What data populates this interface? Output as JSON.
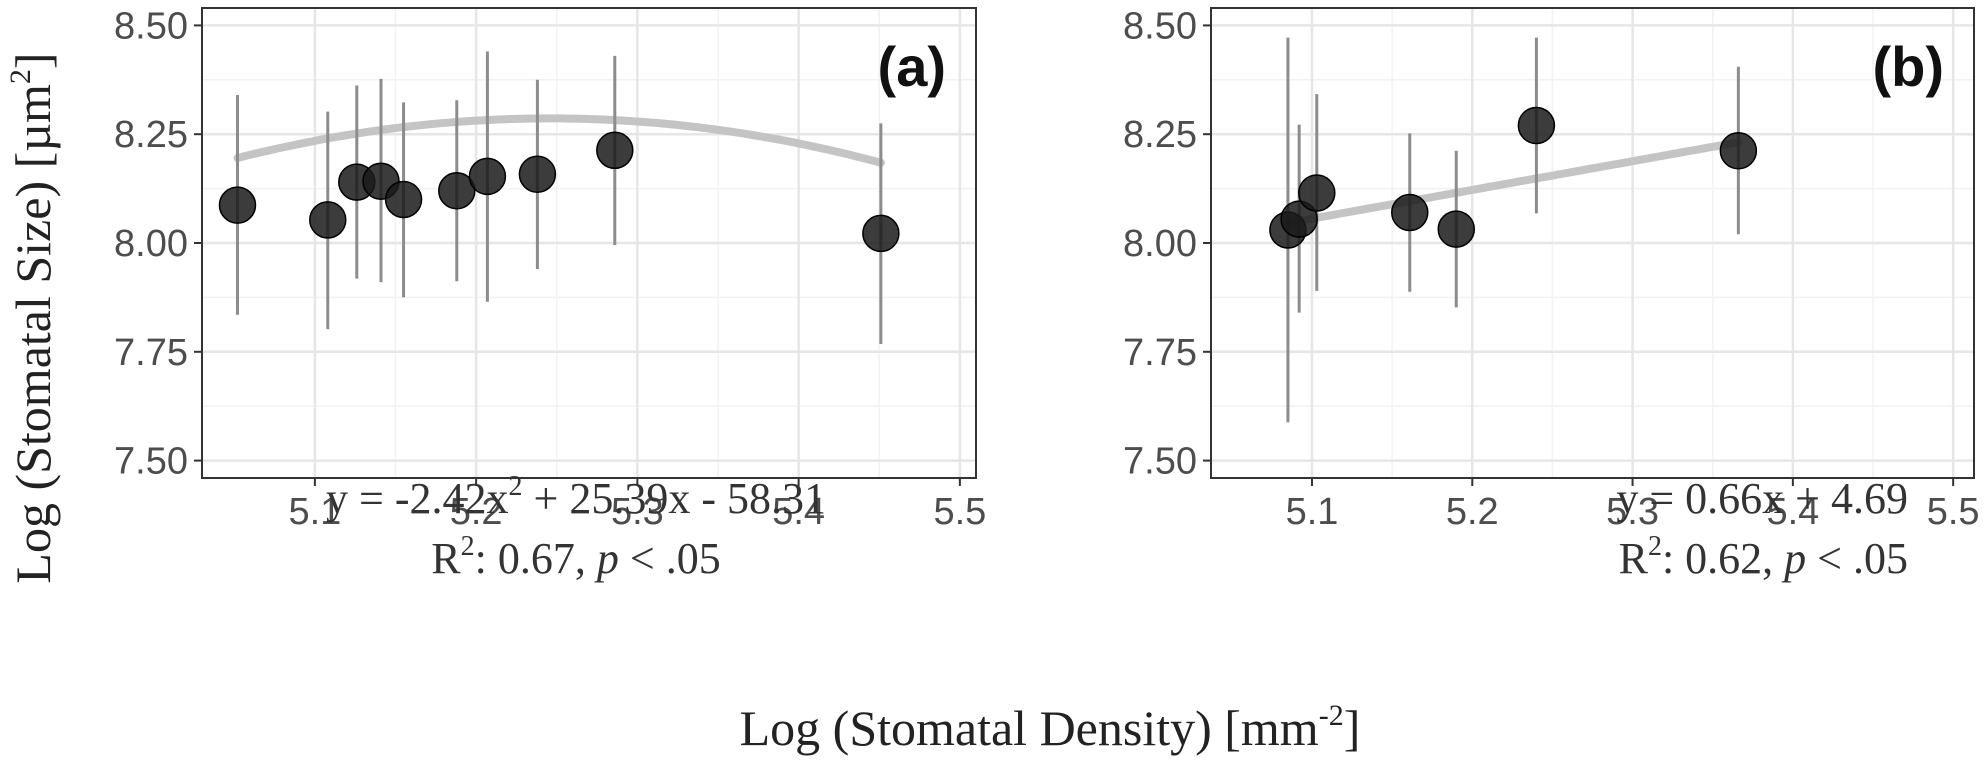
{
  "figure": {
    "xlabel": {
      "text": "Log (Stomatal Density) [mm",
      "sup": "-2",
      "after": "]"
    },
    "ylabel": {
      "text": "Log (Stomatal Size) [µm",
      "sup": "2",
      "after": "]"
    }
  },
  "chart_data": [
    {
      "type": "scatter",
      "panel_label": "(a)",
      "xlim": [
        5.03,
        5.51
      ],
      "ylim": [
        7.46,
        8.54
      ],
      "xticks": [
        5.1,
        5.2,
        5.3,
        5.4,
        5.5
      ],
      "xtick_labels": [
        "5.1",
        "5.2",
        "5.3",
        "5.4",
        "5.5"
      ],
      "yticks": [
        7.5,
        7.75,
        8.0,
        8.25,
        8.5
      ],
      "ytick_labels": [
        "7.50",
        "7.75",
        "8.00",
        "8.25",
        "8.50"
      ],
      "grid": true,
      "points": [
        {
          "x": 5.052,
          "y": 8.087,
          "y_low": 7.835,
          "y_high": 8.34
        },
        {
          "x": 5.108,
          "y": 8.053,
          "y_low": 7.802,
          "y_high": 8.302
        },
        {
          "x": 5.126,
          "y": 8.14,
          "y_low": 7.918,
          "y_high": 8.362
        },
        {
          "x": 5.141,
          "y": 8.142,
          "y_low": 7.91,
          "y_high": 8.377
        },
        {
          "x": 5.155,
          "y": 8.1,
          "y_low": 7.875,
          "y_high": 8.323
        },
        {
          "x": 5.188,
          "y": 8.12,
          "y_low": 7.912,
          "y_high": 8.328
        },
        {
          "x": 5.207,
          "y": 8.153,
          "y_low": 7.865,
          "y_high": 8.44
        },
        {
          "x": 5.238,
          "y": 8.158,
          "y_low": 7.94,
          "y_high": 8.375
        },
        {
          "x": 5.286,
          "y": 8.213,
          "y_low": 7.995,
          "y_high": 8.43
        },
        {
          "x": 5.451,
          "y": 8.022,
          "y_low": 7.768,
          "y_high": 8.275
        }
      ],
      "fit": {
        "kind": "quadratic",
        "a": -2.42,
        "b": 25.39,
        "c": -58.31,
        "x_range": [
          5.052,
          5.451
        ]
      },
      "annotation": {
        "line1": "y = -2.42x",
        "line1_sup": "2",
        "line1_rest": " + 25.39x - 58.31",
        "line2": "R",
        "line2_sup": "2",
        "line2_mid": ": 0.67, ",
        "line2_p": "p",
        "line2_rest": " < .05"
      }
    },
    {
      "type": "scatter",
      "panel_label": "(b)",
      "xlim": [
        5.037,
        5.513
      ],
      "ylim": [
        7.46,
        8.54
      ],
      "xticks": [
        5.1,
        5.2,
        5.3,
        5.4,
        5.5
      ],
      "xtick_labels": [
        "5.1",
        "5.2",
        "5.3",
        "5.4",
        "5.5"
      ],
      "yticks": [
        7.5,
        7.75,
        8.0,
        8.25,
        8.5
      ],
      "ytick_labels": [
        "7.50",
        "7.75",
        "8.00",
        "8.25",
        "8.50"
      ],
      "grid": true,
      "points": [
        {
          "x": 5.085,
          "y": 8.03,
          "y_low": 7.588,
          "y_high": 8.472
        },
        {
          "x": 5.092,
          "y": 8.055,
          "y_low": 7.84,
          "y_high": 8.272
        },
        {
          "x": 5.103,
          "y": 8.115,
          "y_low": 7.89,
          "y_high": 8.342
        },
        {
          "x": 5.161,
          "y": 8.07,
          "y_low": 7.888,
          "y_high": 8.252
        },
        {
          "x": 5.19,
          "y": 8.032,
          "y_low": 7.852,
          "y_high": 8.212
        },
        {
          "x": 5.24,
          "y": 8.27,
          "y_low": 8.068,
          "y_high": 8.472
        },
        {
          "x": 5.366,
          "y": 8.212,
          "y_low": 8.02,
          "y_high": 8.405
        }
      ],
      "fit": {
        "kind": "linear",
        "a": 0.0,
        "b": 0.66,
        "c": 4.69,
        "x_range": [
          5.085,
          5.366
        ]
      },
      "annotation": {
        "line1": "y = 0.66x + 4.69",
        "line1_sup": "",
        "line1_rest": "",
        "line2": "R",
        "line2_sup": "2",
        "line2_mid": ": 0.62, ",
        "line2_p": "p",
        "line2_rest": " < .05"
      }
    }
  ],
  "colors": {
    "panel_border": "#333333",
    "grid_major": "#e6e6e6",
    "grid_minor": "#f2f2f2",
    "point_fill": "#1a1a1a",
    "errorbar": "#8c8c8c",
    "fit_line": "#c4c4c4"
  }
}
